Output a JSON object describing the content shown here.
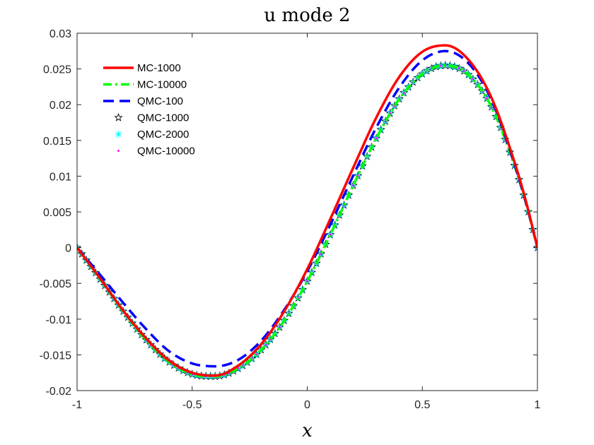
{
  "chart_data": {
    "type": "line",
    "title": "u mode 2",
    "xlabel": "x",
    "ylabel": "",
    "xlim": [
      -1,
      1
    ],
    "ylim": [
      -0.02,
      0.03
    ],
    "xticks": [
      -1,
      -0.5,
      0,
      0.5,
      1
    ],
    "xtick_labels": [
      "-1",
      "-0.5",
      "0",
      "0.5",
      "1"
    ],
    "yticks": [
      -0.02,
      -0.015,
      -0.01,
      -0.005,
      0,
      0.005,
      0.01,
      0.015,
      0.02,
      0.025,
      0.03
    ],
    "ytick_labels": [
      "-0.02",
      "-0.015",
      "-0.01",
      "-0.005",
      "0",
      "0.005",
      "0.01",
      "0.015",
      "0.02",
      "0.025",
      "0.03"
    ],
    "grid": false,
    "legend_position": "top-left",
    "x": [
      -1,
      -0.9,
      -0.8,
      -0.7,
      -0.6,
      -0.5,
      -0.4,
      -0.3,
      -0.2,
      -0.1,
      0,
      0.1,
      0.2,
      0.3,
      0.4,
      0.5,
      0.6,
      0.7,
      0.8,
      0.9,
      0.95,
      1
    ],
    "series": [
      {
        "name": "MC-1000",
        "color": "#ff0000",
        "style": "solid",
        "values": [
          0,
          -0.0043,
          -0.0088,
          -0.0127,
          -0.0158,
          -0.0175,
          -0.0179,
          -0.0165,
          -0.0135,
          -0.0089,
          -0.003,
          0.004,
          0.0112,
          0.0182,
          0.0239,
          0.0274,
          0.0283,
          0.0263,
          0.021,
          0.012,
          0.0065,
          0
        ]
      },
      {
        "name": "MC-10000",
        "color": "#00ff00",
        "style": "dashdot",
        "values": [
          0,
          -0.0044,
          -0.0089,
          -0.0129,
          -0.016,
          -0.0177,
          -0.018,
          -0.0169,
          -0.0143,
          -0.0102,
          -0.0047,
          0.0018,
          0.0087,
          0.0153,
          0.0208,
          0.0243,
          0.0255,
          0.0242,
          0.0197,
          0.0115,
          0.0062,
          0
        ]
      },
      {
        "name": "QMC-100",
        "color": "#0000ff",
        "style": "dashed",
        "values": [
          0,
          -0.0038,
          -0.0077,
          -0.0114,
          -0.0145,
          -0.0162,
          -0.0166,
          -0.0157,
          -0.013,
          -0.0087,
          -0.0033,
          0.0032,
          0.0101,
          0.0168,
          0.0224,
          0.0262,
          0.0275,
          0.0258,
          0.0207,
          0.0117,
          0.0063,
          0
        ]
      },
      {
        "name": "QMC-1000",
        "color": "#000000",
        "style": "marker-star",
        "values": [
          0,
          -0.0044,
          -0.0089,
          -0.0129,
          -0.016,
          -0.0177,
          -0.018,
          -0.0169,
          -0.0143,
          -0.0102,
          -0.0047,
          0.0018,
          0.0087,
          0.0153,
          0.0208,
          0.0243,
          0.0255,
          0.0242,
          0.0197,
          0.0115,
          0.0062,
          0
        ]
      },
      {
        "name": "QMC-2000",
        "color": "#00ffff",
        "style": "marker-asterisk",
        "values": [
          0,
          -0.0044,
          -0.0089,
          -0.0129,
          -0.016,
          -0.0177,
          -0.018,
          -0.0169,
          -0.0143,
          -0.0102,
          -0.0047,
          0.0018,
          0.0087,
          0.0153,
          0.0208,
          0.0243,
          0.0255,
          0.0242,
          0.0197,
          0.0115,
          0.0062,
          0
        ]
      },
      {
        "name": "QMC-10000",
        "color": "#ff00ff",
        "style": "marker-dot",
        "values": [
          0,
          -0.0044,
          -0.0089,
          -0.0129,
          -0.016,
          -0.0177,
          -0.018,
          -0.0169,
          -0.0143,
          -0.0102,
          -0.0047,
          0.0018,
          0.0087,
          0.0153,
          0.0208,
          0.0243,
          0.0255,
          0.0242,
          0.0197,
          0.0115,
          0.0062,
          0
        ]
      }
    ]
  }
}
